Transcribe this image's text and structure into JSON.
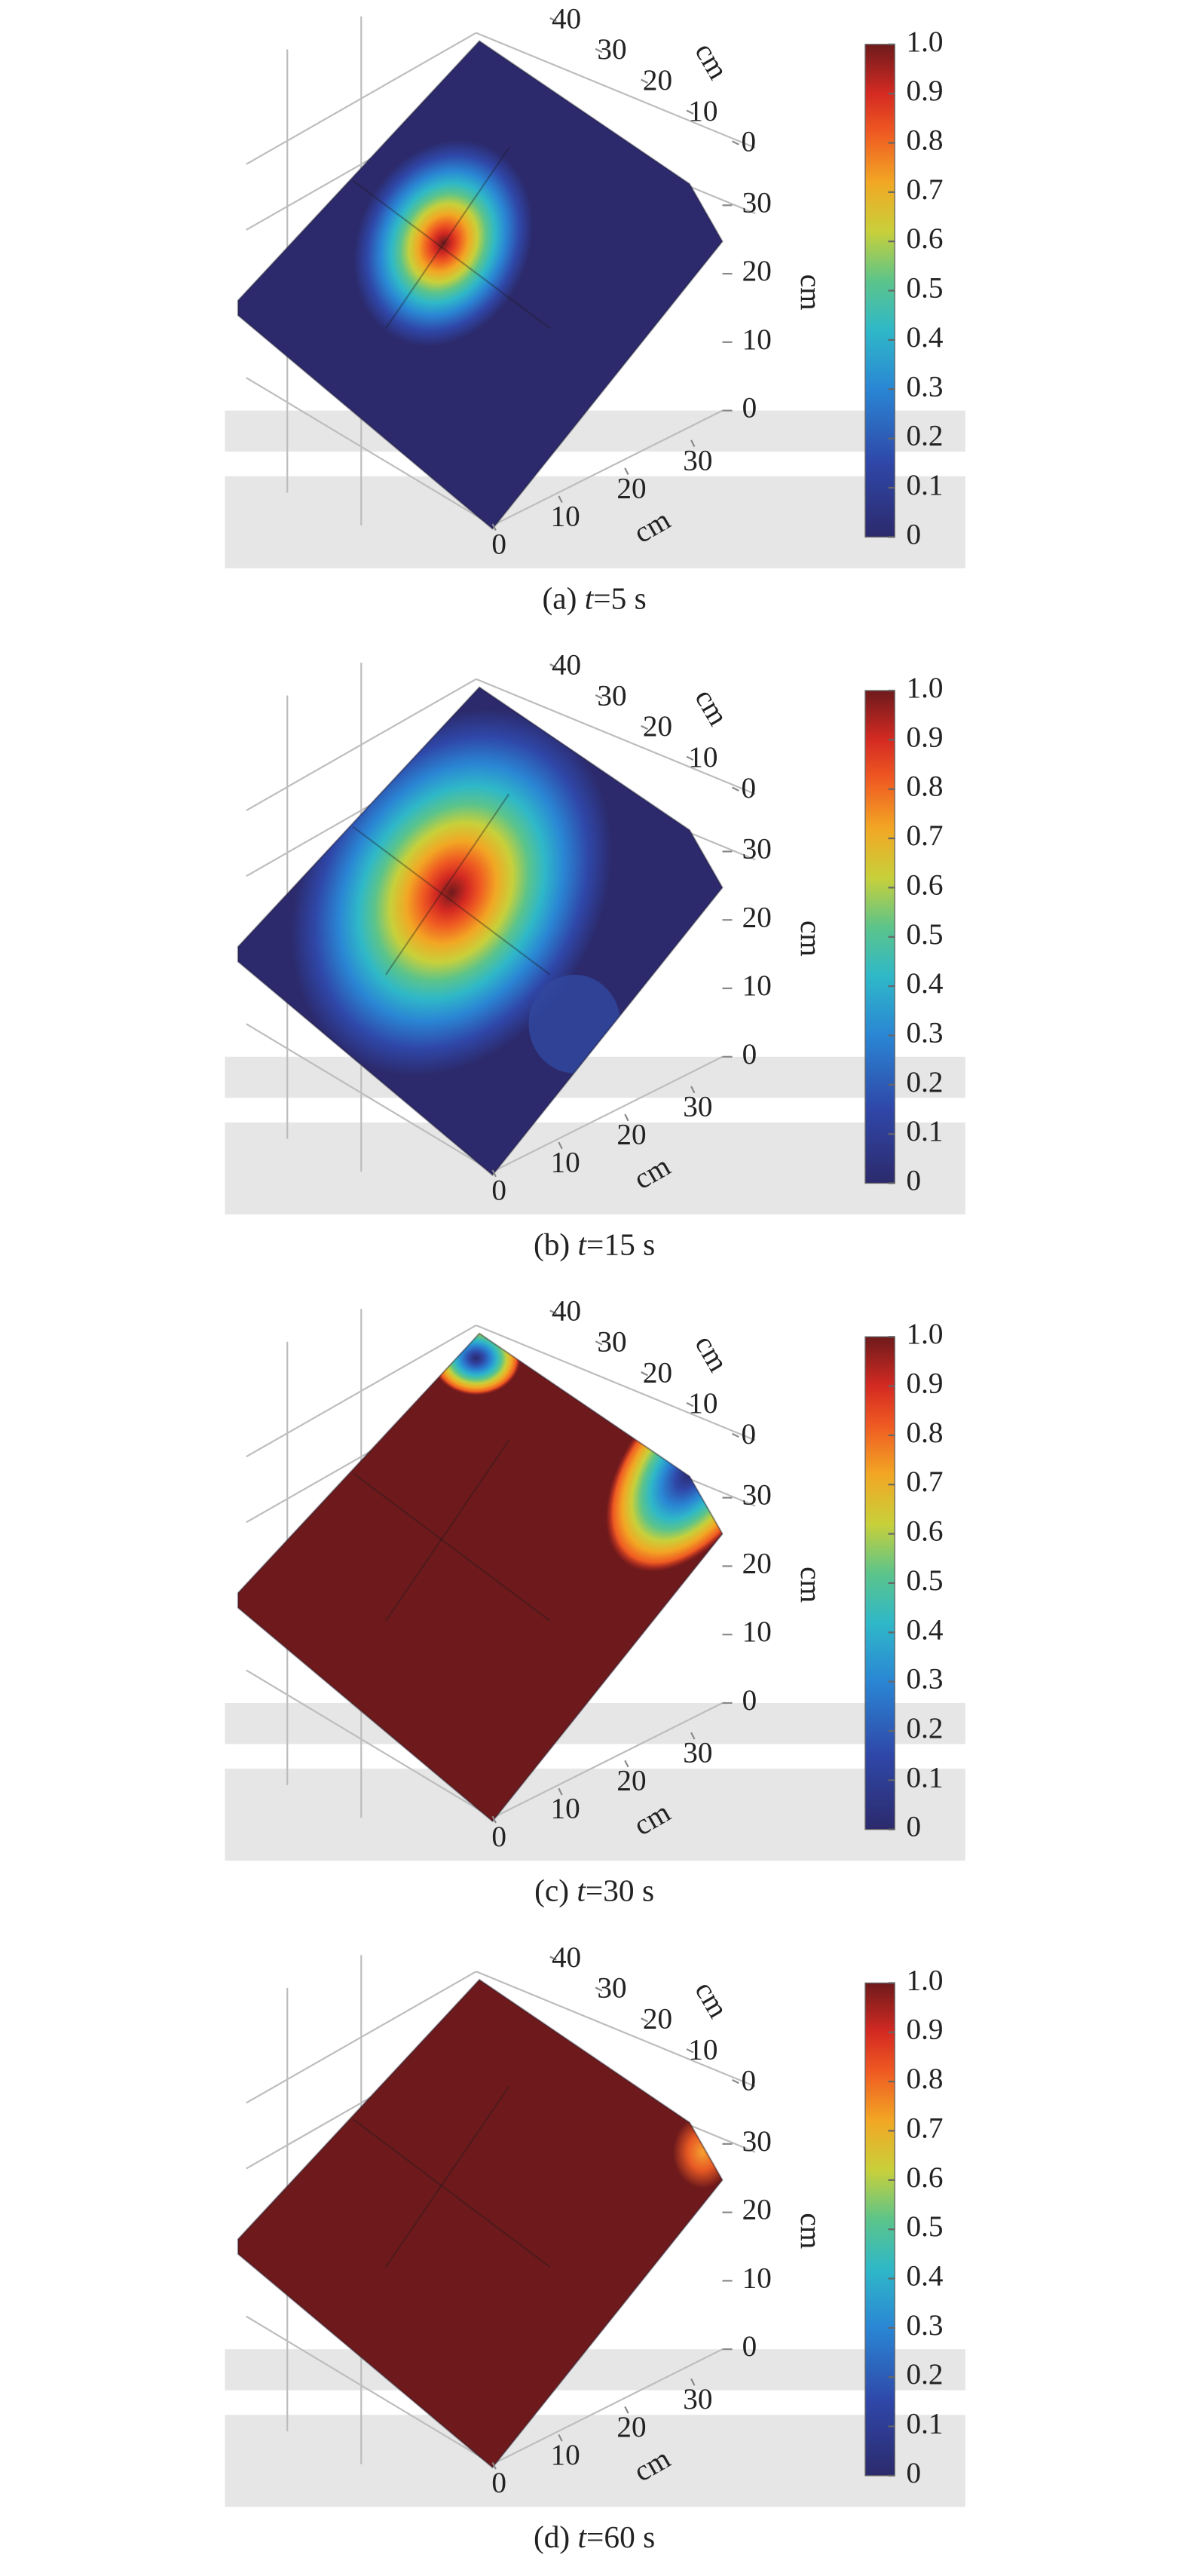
{
  "chart_data": [
    {
      "type": "surface3d",
      "caption": [
        "(a) ",
        "t",
        "=5 s"
      ],
      "colormap": "jet",
      "xlabel": "cm",
      "ylabel": "cm",
      "zlabel": "cm",
      "xlim": [
        0,
        30
      ],
      "xticks": [
        0,
        10,
        20,
        30
      ],
      "ylim": [
        0,
        40
      ],
      "yticks": [
        0,
        10,
        20,
        30,
        40
      ],
      "zlim": [
        0,
        30
      ],
      "zticks": [
        0,
        10,
        20,
        30
      ],
      "clim": [
        0,
        1
      ],
      "cticks": [
        0,
        0.1,
        0.2,
        0.3,
        0.4,
        0.5,
        0.6,
        0.7,
        0.8,
        0.9,
        {
          "value": 1,
          "label": "1.0"
        }
      ]
    },
    {
      "type": "surface3d",
      "caption": [
        "(b) ",
        "t",
        "=15 s"
      ],
      "colormap": "jet",
      "xlabel": "cm",
      "ylabel": "cm",
      "zlabel": "cm",
      "xlim": [
        0,
        30
      ],
      "xticks": [
        0,
        10,
        20,
        30
      ],
      "ylim": [
        0,
        40
      ],
      "yticks": [
        0,
        10,
        20,
        30,
        40
      ],
      "zlim": [
        0,
        30
      ],
      "zticks": [
        0,
        10,
        20,
        30
      ],
      "clim": [
        0,
        1
      ],
      "cticks": [
        0,
        0.1,
        0.2,
        0.3,
        0.4,
        0.5,
        0.6,
        0.7,
        0.8,
        0.9,
        {
          "value": 1,
          "label": "1.0"
        }
      ]
    },
    {
      "type": "surface3d",
      "caption": [
        "(c) ",
        "t",
        "=30 s"
      ],
      "colormap": "jet",
      "xlabel": "cm",
      "ylabel": "cm",
      "zlabel": "cm",
      "xlim": [
        0,
        30
      ],
      "xticks": [
        0,
        10,
        20,
        30
      ],
      "ylim": [
        0,
        40
      ],
      "yticks": [
        0,
        10,
        20,
        30,
        40
      ],
      "zlim": [
        0,
        30
      ],
      "zticks": [
        0,
        10,
        20,
        30
      ],
      "clim": [
        0,
        1
      ],
      "cticks": [
        0,
        0.1,
        0.2,
        0.3,
        0.4,
        0.5,
        0.6,
        0.7,
        0.8,
        0.9,
        {
          "value": 1,
          "label": "1.0"
        }
      ]
    },
    {
      "type": "surface3d",
      "caption": [
        "(d) ",
        "t",
        "=60 s"
      ],
      "colormap": "jet",
      "xlabel": "cm",
      "ylabel": "cm",
      "zlabel": "cm",
      "xlim": [
        0,
        30
      ],
      "xticks": [
        0,
        10,
        20,
        30
      ],
      "ylim": [
        0,
        40
      ],
      "yticks": [
        0,
        10,
        20,
        30,
        40
      ],
      "zlim": [
        0,
        30
      ],
      "zticks": [
        0,
        10,
        20,
        30
      ],
      "clim": [
        0,
        1
      ],
      "cticks": [
        0,
        0.1,
        0.2,
        0.3,
        0.4,
        0.5,
        0.6,
        0.7,
        0.8,
        0.9,
        {
          "value": 1,
          "label": "1.0"
        }
      ]
    }
  ]
}
